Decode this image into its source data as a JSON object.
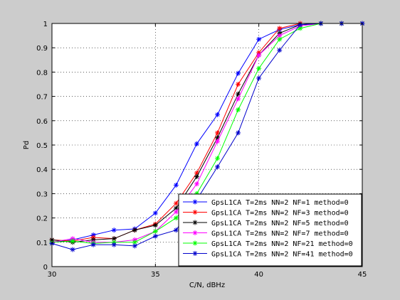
{
  "chart_data": {
    "type": "line",
    "title": "",
    "xlabel": "C/N, dBHz",
    "ylabel": "Pd",
    "xlim": [
      30,
      45
    ],
    "ylim": [
      0,
      1
    ],
    "xticks": [
      30,
      35,
      40,
      45
    ],
    "yticks": [
      0,
      0.1,
      0.2,
      0.3,
      0.4,
      0.5,
      0.6,
      0.7,
      0.8,
      0.9,
      1
    ],
    "grid": true,
    "legend_position": "bottom-right",
    "marker": "*",
    "x": [
      30,
      31,
      32,
      33,
      34,
      35,
      36,
      37,
      38,
      39,
      40,
      41,
      42,
      43,
      44,
      45
    ],
    "series": [
      {
        "name": "GpsL1CA T=2ms NN=2 NF=1 method=0",
        "color": "#0000ff",
        "values": [
          0.1,
          0.11,
          0.13,
          0.15,
          0.155,
          0.22,
          0.335,
          0.505,
          0.625,
          0.795,
          0.935,
          0.975,
          0.995,
          1.0,
          1.0,
          1.0
        ]
      },
      {
        "name": "GpsL1CA T=2ms NN=2 NF=3 method=0",
        "color": "#ff0000",
        "values": [
          0.11,
          0.105,
          0.12,
          0.115,
          0.15,
          0.175,
          0.26,
          0.385,
          0.55,
          0.75,
          0.88,
          0.98,
          1.0,
          1.0,
          1.0,
          1.0
        ]
      },
      {
        "name": "GpsL1CA T=2ms NN=2 NF=5 method=0",
        "color": "#000000",
        "values": [
          0.11,
          0.1,
          0.11,
          0.115,
          0.15,
          0.17,
          0.24,
          0.37,
          0.53,
          0.71,
          0.87,
          0.96,
          0.995,
          1.0,
          1.0,
          1.0
        ]
      },
      {
        "name": "GpsL1CA T=2ms NN=2 NF=7 method=0",
        "color": "#ff00ff",
        "values": [
          0.1,
          0.115,
          0.1,
          0.1,
          0.11,
          0.145,
          0.225,
          0.34,
          0.515,
          0.69,
          0.87,
          0.95,
          0.99,
          1.0,
          1.0,
          1.0
        ]
      },
      {
        "name": "GpsL1CA T=2ms NN=2 NF=21 method=0",
        "color": "#00ff00",
        "values": [
          0.1,
          0.105,
          0.095,
          0.1,
          0.1,
          0.145,
          0.2,
          0.3,
          0.445,
          0.645,
          0.815,
          0.935,
          0.98,
          1.0,
          1.0,
          1.0
        ]
      },
      {
        "name": "GpsL1CA T=2ms NN=2 NF=41 method=0",
        "color": "#0000cc",
        "values": [
          0.095,
          0.07,
          0.09,
          0.09,
          0.085,
          0.125,
          0.15,
          0.275,
          0.41,
          0.55,
          0.775,
          0.89,
          0.995,
          1.0,
          1.0,
          1.0
        ]
      }
    ]
  }
}
